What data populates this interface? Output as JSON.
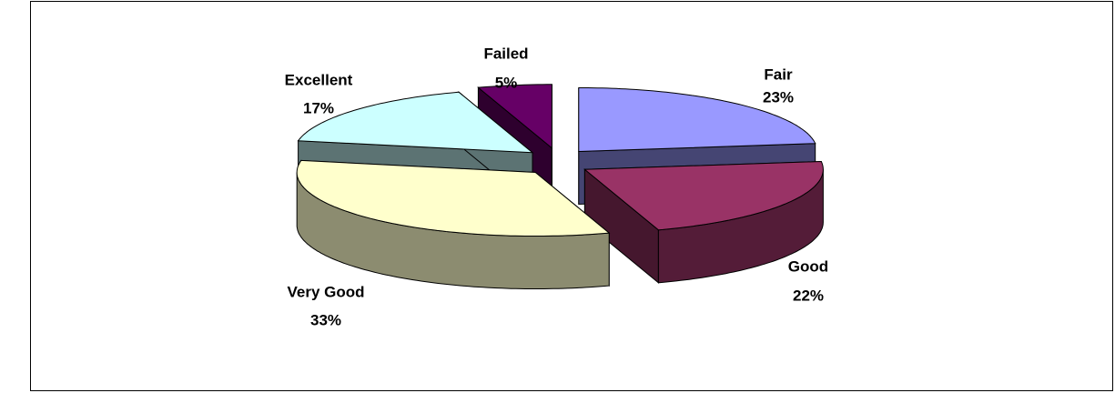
{
  "chart_data": {
    "type": "pie3d",
    "categories": [
      "Fair",
      "Good",
      "Very Good",
      "Excellent",
      "Failed"
    ],
    "values": [
      23,
      22,
      33,
      17,
      5
    ],
    "value_labels": [
      "23%",
      "22%",
      "33%",
      "17%",
      "5%"
    ],
    "colors": [
      "#9999ff",
      "#993366",
      "#ffffcc",
      "#ccffff",
      "#660066"
    ]
  }
}
